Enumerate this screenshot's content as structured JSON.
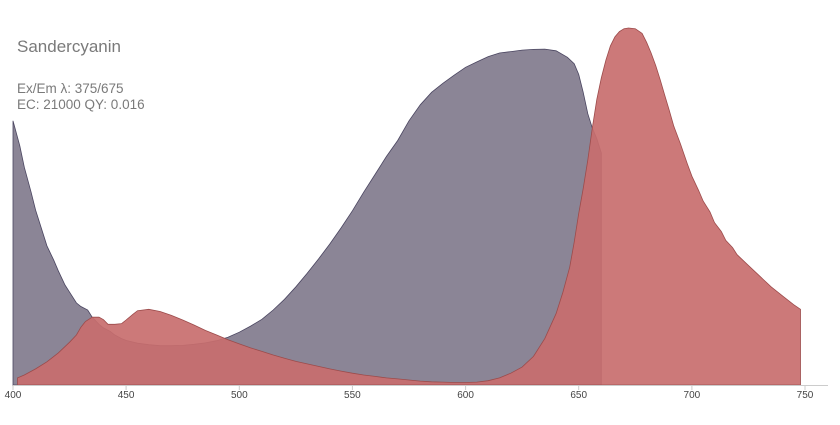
{
  "chart_data": {
    "type": "area",
    "title": "Sandercyanin",
    "info_line_1": "Ex/Em λ: 375/675",
    "info_line_2": "EC: 21000  QY: 0.016",
    "xlabel": "",
    "ylabel": "",
    "xlim": [
      400,
      760
    ],
    "ylim": [
      0,
      1
    ],
    "x_ticks": [
      "400",
      "450",
      "500",
      "550",
      "600",
      "650",
      "700",
      "750"
    ],
    "grid": false,
    "legend": "none",
    "series": [
      {
        "role": "excitation",
        "color": "#817b8d",
        "edge": "#4a4560",
        "points": [
          [
            400,
            0.74
          ],
          [
            403,
            0.67
          ],
          [
            405,
            0.61
          ],
          [
            408,
            0.54
          ],
          [
            410,
            0.49
          ],
          [
            413,
            0.43
          ],
          [
            415,
            0.39
          ],
          [
            418,
            0.35
          ],
          [
            420,
            0.32
          ],
          [
            423,
            0.28
          ],
          [
            425,
            0.26
          ],
          [
            428,
            0.23
          ],
          [
            430,
            0.22
          ],
          [
            433,
            0.21
          ],
          [
            435,
            0.19
          ],
          [
            438,
            0.17
          ],
          [
            440,
            0.16
          ],
          [
            443,
            0.15
          ],
          [
            445,
            0.14
          ],
          [
            448,
            0.13
          ],
          [
            450,
            0.125
          ],
          [
            455,
            0.117
          ],
          [
            460,
            0.113
          ],
          [
            465,
            0.11
          ],
          [
            470,
            0.11
          ],
          [
            475,
            0.111
          ],
          [
            480,
            0.114
          ],
          [
            485,
            0.118
          ],
          [
            490,
            0.124
          ],
          [
            495,
            0.134
          ],
          [
            500,
            0.148
          ],
          [
            505,
            0.165
          ],
          [
            510,
            0.184
          ],
          [
            515,
            0.21
          ],
          [
            520,
            0.24
          ],
          [
            525,
            0.275
          ],
          [
            530,
            0.313
          ],
          [
            535,
            0.353
          ],
          [
            540,
            0.395
          ],
          [
            545,
            0.44
          ],
          [
            550,
            0.488
          ],
          [
            555,
            0.54
          ],
          [
            560,
            0.59
          ],
          [
            565,
            0.64
          ],
          [
            570,
            0.685
          ],
          [
            575,
            0.74
          ],
          [
            580,
            0.785
          ],
          [
            585,
            0.82
          ],
          [
            590,
            0.845
          ],
          [
            595,
            0.868
          ],
          [
            600,
            0.89
          ],
          [
            605,
            0.905
          ],
          [
            610,
            0.92
          ],
          [
            615,
            0.93
          ],
          [
            620,
            0.934
          ],
          [
            625,
            0.938
          ],
          [
            630,
            0.94
          ],
          [
            635,
            0.941
          ],
          [
            640,
            0.936
          ],
          [
            645,
            0.918
          ],
          [
            648,
            0.9
          ],
          [
            650,
            0.87
          ],
          [
            652,
            0.82
          ],
          [
            654,
            0.76
          ],
          [
            656,
            0.72
          ],
          [
            658,
            0.69
          ],
          [
            660,
            0.65
          ]
        ]
      },
      {
        "role": "emission",
        "color": "#c86e6e",
        "edge": "#9c4b4b",
        "points": [
          [
            402,
            0.02
          ],
          [
            405,
            0.028
          ],
          [
            410,
            0.045
          ],
          [
            415,
            0.065
          ],
          [
            420,
            0.09
          ],
          [
            425,
            0.12
          ],
          [
            428,
            0.14
          ],
          [
            430,
            0.162
          ],
          [
            432,
            0.178
          ],
          [
            435,
            0.19
          ],
          [
            438,
            0.19
          ],
          [
            440,
            0.183
          ],
          [
            442,
            0.17
          ],
          [
            445,
            0.17
          ],
          [
            448,
            0.172
          ],
          [
            450,
            0.182
          ],
          [
            453,
            0.198
          ],
          [
            455,
            0.208
          ],
          [
            460,
            0.212
          ],
          [
            465,
            0.206
          ],
          [
            470,
            0.195
          ],
          [
            475,
            0.182
          ],
          [
            480,
            0.168
          ],
          [
            485,
            0.153
          ],
          [
            490,
            0.14
          ],
          [
            495,
            0.127
          ],
          [
            500,
            0.115
          ],
          [
            505,
            0.104
          ],
          [
            510,
            0.094
          ],
          [
            515,
            0.084
          ],
          [
            520,
            0.075
          ],
          [
            525,
            0.066
          ],
          [
            530,
            0.059
          ],
          [
            535,
            0.052
          ],
          [
            540,
            0.045
          ],
          [
            545,
            0.039
          ],
          [
            550,
            0.033
          ],
          [
            555,
            0.028
          ],
          [
            560,
            0.024
          ],
          [
            565,
            0.02
          ],
          [
            570,
            0.017
          ],
          [
            575,
            0.014
          ],
          [
            580,
            0.011
          ],
          [
            585,
            0.009
          ],
          [
            590,
            0.008
          ],
          [
            595,
            0.007
          ],
          [
            600,
            0.007
          ],
          [
            605,
            0.008
          ],
          [
            610,
            0.012
          ],
          [
            615,
            0.02
          ],
          [
            620,
            0.033
          ],
          [
            625,
            0.05
          ],
          [
            630,
            0.08
          ],
          [
            635,
            0.13
          ],
          [
            640,
            0.2
          ],
          [
            643,
            0.26
          ],
          [
            646,
            0.33
          ],
          [
            648,
            0.4
          ],
          [
            650,
            0.48
          ],
          [
            652,
            0.55
          ],
          [
            654,
            0.63
          ],
          [
            656,
            0.72
          ],
          [
            658,
            0.8
          ],
          [
            660,
            0.86
          ],
          [
            662,
            0.91
          ],
          [
            664,
            0.95
          ],
          [
            666,
            0.975
          ],
          [
            668,
            0.99
          ],
          [
            670,
            0.998
          ],
          [
            672,
            1.0
          ],
          [
            675,
            0.998
          ],
          [
            678,
            0.985
          ],
          [
            680,
            0.96
          ],
          [
            682,
            0.93
          ],
          [
            684,
            0.895
          ],
          [
            686,
            0.855
          ],
          [
            688,
            0.812
          ],
          [
            690,
            0.77
          ],
          [
            692,
            0.725
          ],
          [
            695,
            0.675
          ],
          [
            698,
            0.62
          ],
          [
            700,
            0.585
          ],
          [
            703,
            0.545
          ],
          [
            705,
            0.515
          ],
          [
            708,
            0.485
          ],
          [
            710,
            0.455
          ],
          [
            713,
            0.43
          ],
          [
            715,
            0.405
          ],
          [
            718,
            0.385
          ],
          [
            720,
            0.365
          ],
          [
            725,
            0.335
          ],
          [
            730,
            0.305
          ],
          [
            735,
            0.275
          ],
          [
            740,
            0.25
          ],
          [
            745,
            0.225
          ],
          [
            748,
            0.212
          ]
        ]
      }
    ]
  }
}
